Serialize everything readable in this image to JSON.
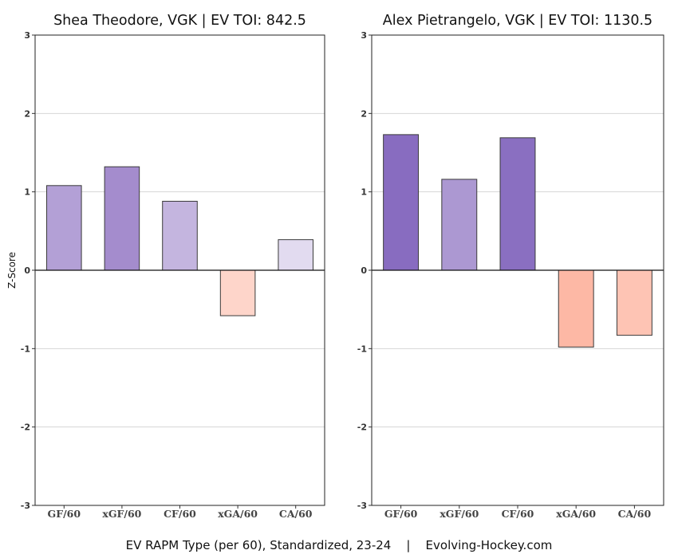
{
  "caption": "EV RAPM Type (per 60), Standardized, 23-24    |    Evolving-Hockey.com",
  "chart_data": [
    {
      "type": "bar",
      "title": "Shea Theodore, VGK  |  EV TOI: 842.5",
      "categories": [
        "GF/60",
        "xGF/60",
        "CF/60",
        "xGA/60",
        "CA/60"
      ],
      "values": [
        1.08,
        1.32,
        0.88,
        -0.58,
        0.39
      ],
      "colors": [
        "#b3a0d6",
        "#a48ccd",
        "#c4b5df",
        "#fed5ca",
        "#e2dbf0"
      ],
      "ylabel": "Z-Score",
      "ylim": [
        -3,
        3
      ],
      "yticks": [
        "3",
        "2",
        "1",
        "0",
        "-1",
        "-2",
        "-3"
      ],
      "grid": true
    },
    {
      "type": "bar",
      "title": "Alex Pietrangelo, VGK  |  EV TOI: 1130.5",
      "categories": [
        "GF/60",
        "xGF/60",
        "CF/60",
        "xGA/60",
        "CA/60"
      ],
      "values": [
        1.73,
        1.16,
        1.69,
        -0.98,
        -0.83
      ],
      "colors": [
        "#886cc0",
        "#ac98d2",
        "#8a6fc1",
        "#fdb8a5",
        "#fec4b4"
      ],
      "ylabel": "",
      "ylim": [
        -3,
        3
      ],
      "yticks": [
        "3",
        "2",
        "1",
        "0",
        "-1",
        "-2",
        "-3"
      ],
      "grid": true
    }
  ]
}
